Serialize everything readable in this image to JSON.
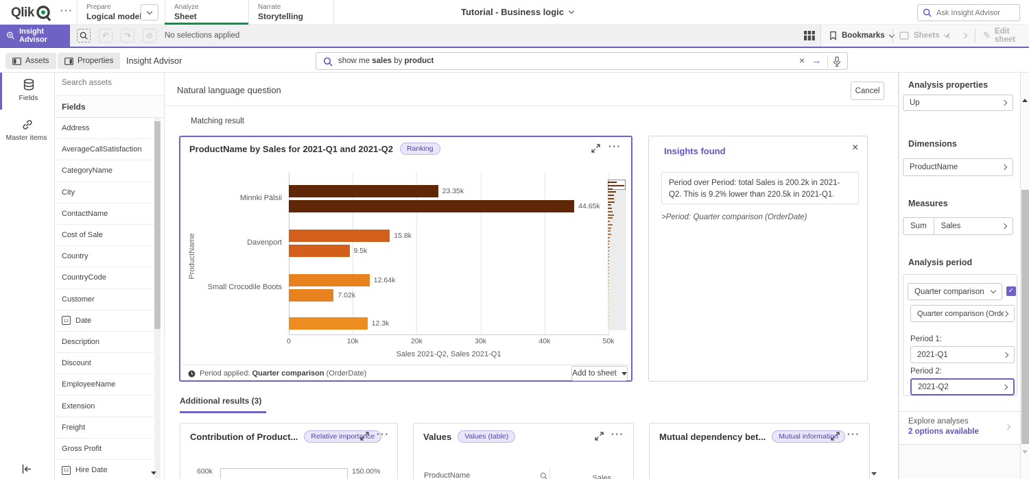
{
  "colors": {
    "accent_purple": "#6e62c5",
    "link_purple": "#5f55c1",
    "brand_green": "#009845",
    "chart_card_border": "#6c62c8",
    "bar_colors": [
      "#5f2708",
      "#d2601b",
      "#e8821e",
      "#ed8c1f"
    ]
  },
  "topbar": {
    "logo_text": "Qlik",
    "nav": [
      {
        "section": "Prepare",
        "page": "Logical model"
      },
      {
        "section": "Analyze",
        "page": "Sheet"
      },
      {
        "section": "Narrate",
        "page": "Storytelling"
      }
    ],
    "app_title": "Tutorial - Business logic",
    "ask_placeholder": "Ask Insight Advisor"
  },
  "toolbar": {
    "insight_advisor": "Insight Advisor",
    "no_selections": "No selections applied",
    "bookmarks": "Bookmarks",
    "sheets": "Sheets",
    "edit_sheet": "Edit sheet"
  },
  "assets_bar": {
    "assets": "Assets",
    "properties": "Properties",
    "panel_title": "Insight Advisor",
    "query_parts": [
      "show me ",
      "sales",
      " by ",
      "product"
    ]
  },
  "left_nav": {
    "fields": "Fields",
    "master_items": "Master items"
  },
  "assets_panel": {
    "search_placeholder": "Search assets",
    "section_header": "Fields",
    "fields": [
      {
        "label": "Address"
      },
      {
        "label": "AverageCallSatisfaction"
      },
      {
        "label": "CategoryName"
      },
      {
        "label": "City"
      },
      {
        "label": "ContactName"
      },
      {
        "label": "Cost of Sale"
      },
      {
        "label": "Country"
      },
      {
        "label": "CountryCode"
      },
      {
        "label": "Customer"
      },
      {
        "label": "Date",
        "icon": "calendar"
      },
      {
        "label": "Description"
      },
      {
        "label": "Discount"
      },
      {
        "label": "EmployeeName"
      },
      {
        "label": "Extension"
      },
      {
        "label": "Freight"
      },
      {
        "label": "Gross Profit"
      },
      {
        "label": "Hire Date",
        "icon": "calendar"
      }
    ]
  },
  "main": {
    "header": "Natural language question",
    "cancel": "Cancel",
    "matching_result": "Matching result",
    "chart_card": {
      "title": "ProductName by Sales for 2021-Q1 and 2021-Q2",
      "badge": "Ranking",
      "period_prefix": "Period applied:",
      "period_bold": "Quarter comparison",
      "period_suffix": "(OrderDate)",
      "add_to_sheet": "Add to sheet"
    },
    "insights": {
      "title": "Insights found",
      "body": "Period over Period: total Sales is 200.2k in 2021-Q2. This is 9.2% lower than 220.5k in 2021-Q1.",
      "period_note": ">Period: Quarter comparison (OrderDate)"
    },
    "additional_tab": "Additional results (3)",
    "cards": [
      {
        "title": "Contribution of Product...",
        "badge": "Relative importance",
        "left_tick": "600k",
        "right_tick": "150.00%"
      },
      {
        "title": "Values",
        "badge": "Values (table)",
        "columns": [
          "ProductName",
          "Sales"
        ]
      },
      {
        "title": "Mutual dependency bet...",
        "badge": "Mutual information"
      }
    ]
  },
  "chart_data": {
    "type": "bar",
    "orientation": "horizontal",
    "title": "ProductName by Sales for 2021-Q1 and 2021-Q2",
    "xlabel": "Sales 2021-Q2, Sales 2021-Q1",
    "ylabel": "ProductName",
    "x_ticks": [
      "0",
      "10k",
      "20k",
      "30k",
      "40k",
      "50k"
    ],
    "xlim": [
      0,
      54000
    ],
    "grid": true,
    "categories": [
      "Minnki Pälsii",
      "Davenport",
      "Small Crocodile Boots",
      ""
    ],
    "series": [
      {
        "name": "Sales 2021-Q2",
        "values": [
          23350,
          15800,
          12640,
          12300
        ],
        "labels": [
          "23.35k",
          "15.8k",
          "12.64k",
          "12.3k"
        ]
      },
      {
        "name": "Sales 2021-Q1",
        "values": [
          44650,
          9500,
          7020,
          null
        ],
        "labels": [
          "44.65k",
          "9.5k",
          "7.02k",
          null
        ]
      }
    ],
    "bar_colors_by_category": [
      "#5f2708",
      "#d2601b",
      "#e8821e",
      "#ed8c1f"
    ]
  },
  "right_panel": {
    "title": "Analysis properties",
    "up": "Up",
    "dimensions_label": "Dimensions",
    "dimension": "ProductName",
    "measures_label": "Measures",
    "measure_agg": "Sum",
    "measure": "Sales",
    "analysis_period_label": "Analysis period",
    "period_type": "Quarter comparison",
    "period_field": "Quarter comparison (OrderD...",
    "period1_label": "Period 1:",
    "period1": "2021-Q1",
    "period2_label": "Period 2:",
    "period2": "2021-Q2",
    "explore": "Explore analyses",
    "explore_options": "2 options available"
  }
}
